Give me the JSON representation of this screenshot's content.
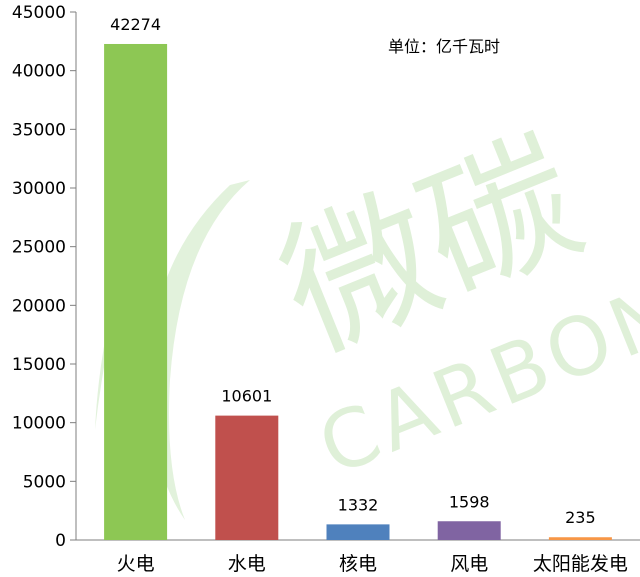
{
  "chart_data": {
    "type": "bar",
    "categories": [
      "火电",
      "水电",
      "核电",
      "风电",
      "太阳能发电"
    ],
    "values": [
      42274,
      10601,
      1332,
      1598,
      235
    ],
    "colors": [
      "#8dc754",
      "#c0504d",
      "#4f81bd",
      "#8064a2",
      "#f79646"
    ],
    "ylim": [
      0,
      45000
    ],
    "yticks": [
      0,
      5000,
      10000,
      15000,
      20000,
      25000,
      30000,
      35000,
      40000,
      45000
    ],
    "unit": "单位：亿千瓦时",
    "grid": false,
    "legend": "none"
  },
  "watermark": {
    "cn": "微碳",
    "en": "CARBON",
    "color": "#dff0d8"
  }
}
